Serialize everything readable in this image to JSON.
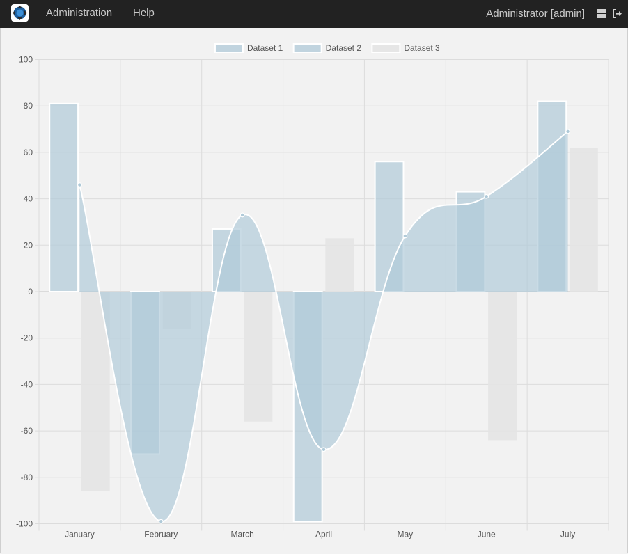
{
  "navbar": {
    "logo_icon": "app-logo-icon",
    "links": [
      {
        "label": "Administration"
      },
      {
        "label": "Help"
      }
    ],
    "user_label": "Administrator [admin]",
    "dashboard_icon": "grid-icon",
    "logout_icon": "logout-icon"
  },
  "chart_data": {
    "type": "bar",
    "categories": [
      "January",
      "February",
      "March",
      "April",
      "May",
      "June",
      "July"
    ],
    "series": [
      {
        "name": "Dataset 1",
        "type": "bar",
        "color": "#b0cad8",
        "values": [
          81,
          -70,
          27,
          -99,
          56,
          43,
          82
        ]
      },
      {
        "name": "Dataset 2",
        "type": "area",
        "color": "#b0cad8",
        "values": [
          46,
          -99,
          33,
          -68,
          24,
          41,
          69
        ]
      },
      {
        "name": "Dataset 3",
        "type": "bar",
        "color": "#e4e4e4",
        "values": [
          -86,
          -16,
          -56,
          23,
          null,
          -64,
          62
        ]
      }
    ],
    "ylim": [
      -100,
      100
    ],
    "yticks": [
      100,
      80,
      60,
      40,
      20,
      0,
      -20,
      -40,
      -60,
      -80,
      -100
    ],
    "grid": true,
    "legend": "top-center",
    "title": "",
    "xlabel": "",
    "ylabel": ""
  }
}
